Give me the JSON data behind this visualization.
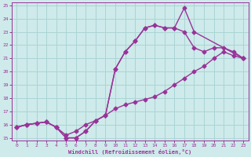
{
  "xlabel": "Windchill (Refroidissement éolien,°C)",
  "bg_color": "#ceeaea",
  "grid_color": "#aad4d4",
  "line_color": "#993399",
  "xlim": [
    -0.5,
    23.5
  ],
  "ylim": [
    14.8,
    25.2
  ],
  "xticks": [
    0,
    1,
    2,
    3,
    4,
    5,
    6,
    7,
    8,
    9,
    10,
    11,
    12,
    13,
    14,
    15,
    16,
    17,
    18,
    19,
    20,
    21,
    22,
    23
  ],
  "yticks": [
    15,
    16,
    17,
    18,
    19,
    20,
    21,
    22,
    23,
    24,
    25
  ],
  "line1_x": [
    0,
    1,
    2,
    3,
    4,
    5,
    6,
    7,
    8,
    9,
    10,
    11,
    12,
    13,
    14,
    15,
    16,
    17,
    18,
    19,
    20,
    21,
    22,
    23
  ],
  "line1_y": [
    15.8,
    16.0,
    16.1,
    16.2,
    15.8,
    15.2,
    15.5,
    16.0,
    16.3,
    16.7,
    17.2,
    17.5,
    17.7,
    17.9,
    18.1,
    18.5,
    19.0,
    19.5,
    20.0,
    20.4,
    21.0,
    21.5,
    21.2,
    21.0
  ],
  "line2_x": [
    0,
    1,
    2,
    3,
    4,
    5,
    6,
    7,
    8,
    9,
    10,
    11,
    12,
    13,
    14,
    15,
    16,
    17,
    18,
    23
  ],
  "line2_y": [
    15.8,
    16.0,
    16.1,
    16.2,
    15.8,
    15.0,
    15.0,
    15.5,
    16.3,
    16.7,
    20.2,
    21.5,
    22.3,
    23.3,
    23.5,
    23.3,
    23.3,
    24.8,
    23.0,
    21.0
  ],
  "line3_x": [
    0,
    1,
    2,
    3,
    4,
    5,
    6,
    7,
    8,
    9,
    10,
    11,
    12,
    13,
    14,
    15,
    16,
    17,
    18,
    19,
    20,
    21,
    22,
    23
  ],
  "line3_y": [
    15.8,
    16.0,
    16.1,
    16.2,
    15.8,
    15.0,
    15.0,
    15.5,
    16.3,
    16.7,
    20.2,
    21.5,
    22.3,
    23.3,
    23.5,
    23.3,
    23.3,
    23.0,
    21.8,
    21.5,
    21.8,
    21.8,
    21.5,
    21.0
  ],
  "markersize": 2.5,
  "linewidth": 1.0
}
